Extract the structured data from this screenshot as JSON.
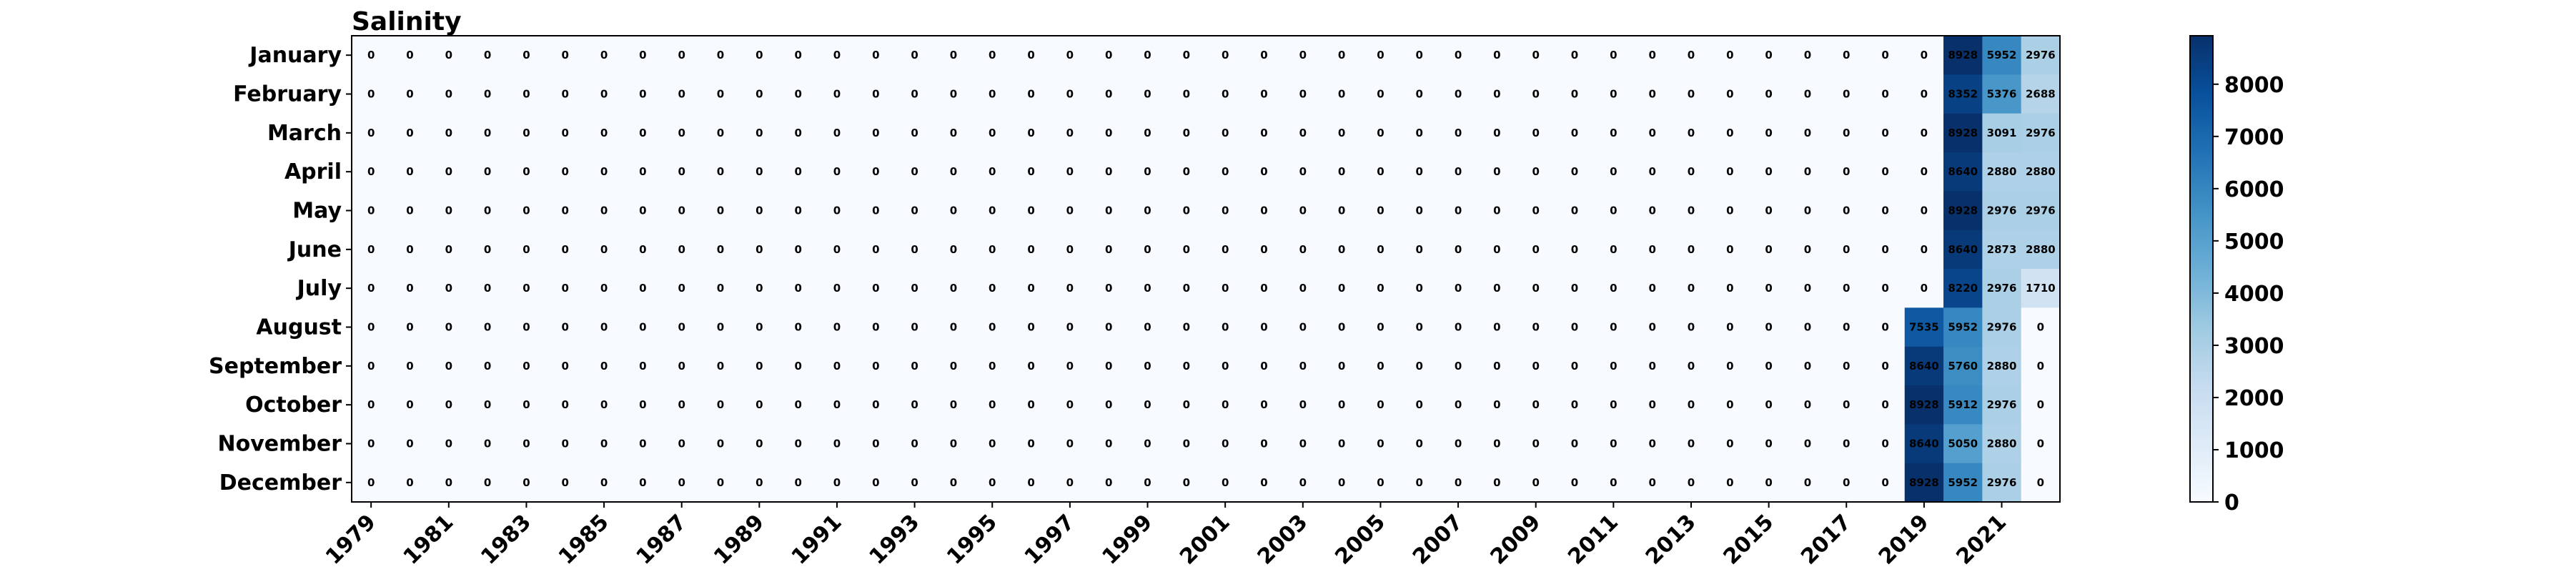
{
  "chart_data": {
    "type": "heatmap",
    "title": "Salinity",
    "xlabel": "",
    "ylabel": "",
    "rows": [
      "January",
      "February",
      "March",
      "April",
      "May",
      "June",
      "July",
      "August",
      "September",
      "October",
      "November",
      "December"
    ],
    "columns": [
      1979,
      1980,
      1981,
      1982,
      1983,
      1984,
      1985,
      1986,
      1987,
      1988,
      1989,
      1990,
      1991,
      1992,
      1993,
      1994,
      1995,
      1996,
      1997,
      1998,
      1999,
      2000,
      2001,
      2002,
      2003,
      2004,
      2005,
      2006,
      2007,
      2008,
      2009,
      2010,
      2011,
      2012,
      2013,
      2014,
      2015,
      2016,
      2017,
      2018,
      2019,
      2020,
      2021,
      2022
    ],
    "x_tick_labels": [
      "1979",
      "1981",
      "1983",
      "1985",
      "1987",
      "1989",
      "1991",
      "1993",
      "1995",
      "1997",
      "1999",
      "2001",
      "2003",
      "2005",
      "2007",
      "2009",
      "2011",
      "2013",
      "2015",
      "2017",
      "2019",
      "2021"
    ],
    "nonzero_values": {
      "January": {
        "2020": 8928,
        "2021": 5952,
        "2022": 2976
      },
      "February": {
        "2020": 8352,
        "2021": 5376,
        "2022": 2688
      },
      "March": {
        "2020": 8928,
        "2021": 3091,
        "2022": 2976
      },
      "April": {
        "2020": 8640,
        "2021": 2880,
        "2022": 2880
      },
      "May": {
        "2020": 8928,
        "2021": 2976,
        "2022": 2976
      },
      "June": {
        "2020": 8640,
        "2021": 2873,
        "2022": 2880
      },
      "July": {
        "2020": 8220,
        "2021": 2976,
        "2022": 1710
      },
      "August": {
        "2019": 7535,
        "2020": 5952,
        "2021": 2976,
        "2022": 0
      },
      "September": {
        "2019": 8640,
        "2020": 5760,
        "2021": 2880,
        "2022": 0
      },
      "October": {
        "2019": 8928,
        "2020": 5912,
        "2021": 2976,
        "2022": 0
      },
      "November": {
        "2019": 8640,
        "2020": 5050,
        "2021": 2880,
        "2022": 0
      },
      "December": {
        "2019": 8928,
        "2020": 5952,
        "2021": 2976,
        "2022": 0
      }
    },
    "default_value": 0,
    "colorbar": {
      "colormap": "Blues",
      "range": [
        0,
        8928
      ],
      "ticks": [
        0,
        1000,
        2000,
        3000,
        4000,
        5000,
        6000,
        7000,
        8000
      ]
    }
  }
}
